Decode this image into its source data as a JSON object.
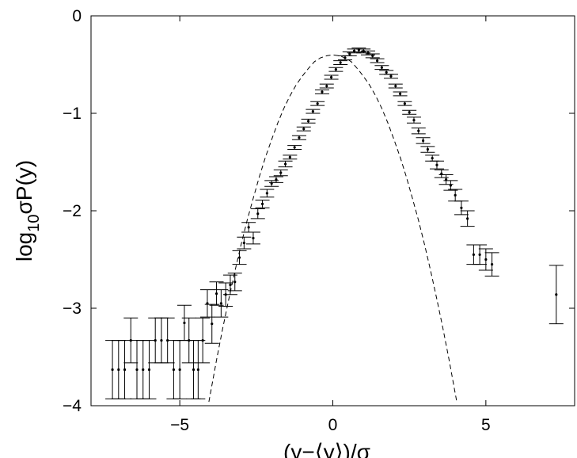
{
  "chart_data": {
    "type": "scatter",
    "xlabel": "(y−⟨y⟩)/σ",
    "ylabel": {
      "prefix": "log",
      "subscript": "10",
      "suffix": "σP(y)"
    },
    "xlim": [
      -7.9,
      7.9
    ],
    "ylim": [
      -4,
      0
    ],
    "xticks": [
      -5,
      0,
      5
    ],
    "xtick_labels": [
      "−5",
      "0",
      "5"
    ],
    "yticks": [
      0,
      -1,
      -2,
      -3,
      -4
    ],
    "ytick_labels": [
      "0",
      "−1",
      "−2",
      "−3",
      "−4"
    ],
    "grid": false,
    "colors": {
      "marker": "#000000",
      "line": "#000000"
    },
    "series": [
      {
        "style": "points-with-errorbars",
        "x": [
          -7.2,
          -7.0,
          -6.8,
          -6.6,
          -6.4,
          -6.2,
          -6.0,
          -5.8,
          -5.6,
          -5.4,
          -5.2,
          -5.0,
          -4.85,
          -4.7,
          -4.55,
          -4.4,
          -4.25,
          -4.1,
          -3.95,
          -3.8,
          -3.65,
          -3.5,
          -3.35,
          -3.2,
          -3.05,
          -2.9,
          -2.75,
          -2.6,
          -2.45,
          -2.3,
          -2.15,
          -2.0,
          -1.85,
          -1.7,
          -1.55,
          -1.4,
          -1.25,
          -1.1,
          -0.95,
          -0.8,
          -0.65,
          -0.5,
          -0.35,
          -0.2,
          -0.05,
          0.1,
          0.25,
          0.4,
          0.55,
          0.7,
          0.85,
          1.0,
          1.15,
          1.3,
          1.45,
          1.6,
          1.75,
          1.9,
          2.05,
          2.2,
          2.35,
          2.5,
          2.65,
          2.8,
          2.95,
          3.1,
          3.25,
          3.4,
          3.55,
          3.7,
          3.85,
          4.0,
          4.2,
          4.4,
          4.6,
          4.8,
          5.0,
          5.2,
          7.3
        ],
        "y": [
          -3.63,
          -3.63,
          -3.63,
          -3.33,
          -3.63,
          -3.63,
          -3.63,
          -3.33,
          -3.33,
          -3.33,
          -3.63,
          -3.63,
          -3.15,
          -3.33,
          -3.63,
          -3.63,
          -3.33,
          -2.95,
          -3.16,
          -2.85,
          -2.95,
          -2.86,
          -2.76,
          -2.73,
          -2.48,
          -2.33,
          -2.17,
          -2.28,
          -2.03,
          -1.93,
          -1.82,
          -1.72,
          -1.68,
          -1.61,
          -1.52,
          -1.45,
          -1.35,
          -1.25,
          -1.16,
          -1.08,
          -0.98,
          -0.9,
          -0.78,
          -0.72,
          -0.63,
          -0.55,
          -0.48,
          -0.43,
          -0.39,
          -0.36,
          -0.35,
          -0.36,
          -0.38,
          -0.41,
          -0.46,
          -0.53,
          -0.58,
          -0.62,
          -0.72,
          -0.8,
          -0.9,
          -0.99,
          -1.07,
          -1.18,
          -1.28,
          -1.37,
          -1.46,
          -1.53,
          -1.62,
          -1.68,
          -1.74,
          -1.84,
          -1.97,
          -2.08,
          -2.45,
          -2.45,
          -2.5,
          -2.55,
          -2.86
        ],
        "err": [
          0.3,
          0.3,
          0.3,
          0.23,
          0.3,
          0.3,
          0.3,
          0.23,
          0.23,
          0.23,
          0.3,
          0.3,
          0.18,
          0.23,
          0.3,
          0.3,
          0.23,
          0.14,
          0.2,
          0.12,
          0.14,
          0.12,
          0.1,
          0.09,
          0.07,
          0.06,
          0.05,
          0.06,
          0.05,
          0.04,
          0.04,
          0.03,
          0.03,
          0.03,
          0.03,
          0.02,
          0.02,
          0.02,
          0.02,
          0.02,
          0.02,
          0.02,
          0.02,
          0.02,
          0.02,
          0.02,
          0.02,
          0.02,
          0.02,
          0.02,
          0.02,
          0.02,
          0.02,
          0.02,
          0.02,
          0.02,
          0.02,
          0.02,
          0.02,
          0.02,
          0.02,
          0.02,
          0.03,
          0.03,
          0.03,
          0.03,
          0.03,
          0.04,
          0.04,
          0.05,
          0.05,
          0.06,
          0.07,
          0.08,
          0.1,
          0.1,
          0.11,
          0.12,
          0.3
        ]
      },
      {
        "style": "dashed-line",
        "curve": "gaussian",
        "x": [
          -4.05,
          -3.8,
          -3.6,
          -3.4,
          -3.2,
          -3.0,
          -2.8,
          -2.6,
          -2.4,
          -2.2,
          -2.0,
          -1.8,
          -1.6,
          -1.4,
          -1.2,
          -1.0,
          -0.8,
          -0.6,
          -0.4,
          -0.2,
          0.0,
          0.2,
          0.4,
          0.6,
          0.8,
          1.0,
          1.2,
          1.4,
          1.6,
          1.8,
          2.0,
          2.2,
          2.4,
          2.6,
          2.8,
          3.0,
          3.2,
          3.4,
          3.6,
          3.8,
          4.05
        ],
        "y": [
          -3.96,
          -3.53,
          -3.21,
          -2.91,
          -2.62,
          -2.35,
          -2.1,
          -1.87,
          -1.65,
          -1.45,
          -1.27,
          -1.1,
          -0.95,
          -0.82,
          -0.71,
          -0.62,
          -0.54,
          -0.47,
          -0.43,
          -0.41,
          -0.4,
          -0.41,
          -0.43,
          -0.47,
          -0.54,
          -0.62,
          -0.71,
          -0.82,
          -0.95,
          -1.1,
          -1.27,
          -1.45,
          -1.65,
          -1.87,
          -2.1,
          -2.35,
          -2.62,
          -2.91,
          -3.21,
          -3.53,
          -3.96
        ]
      }
    ]
  }
}
